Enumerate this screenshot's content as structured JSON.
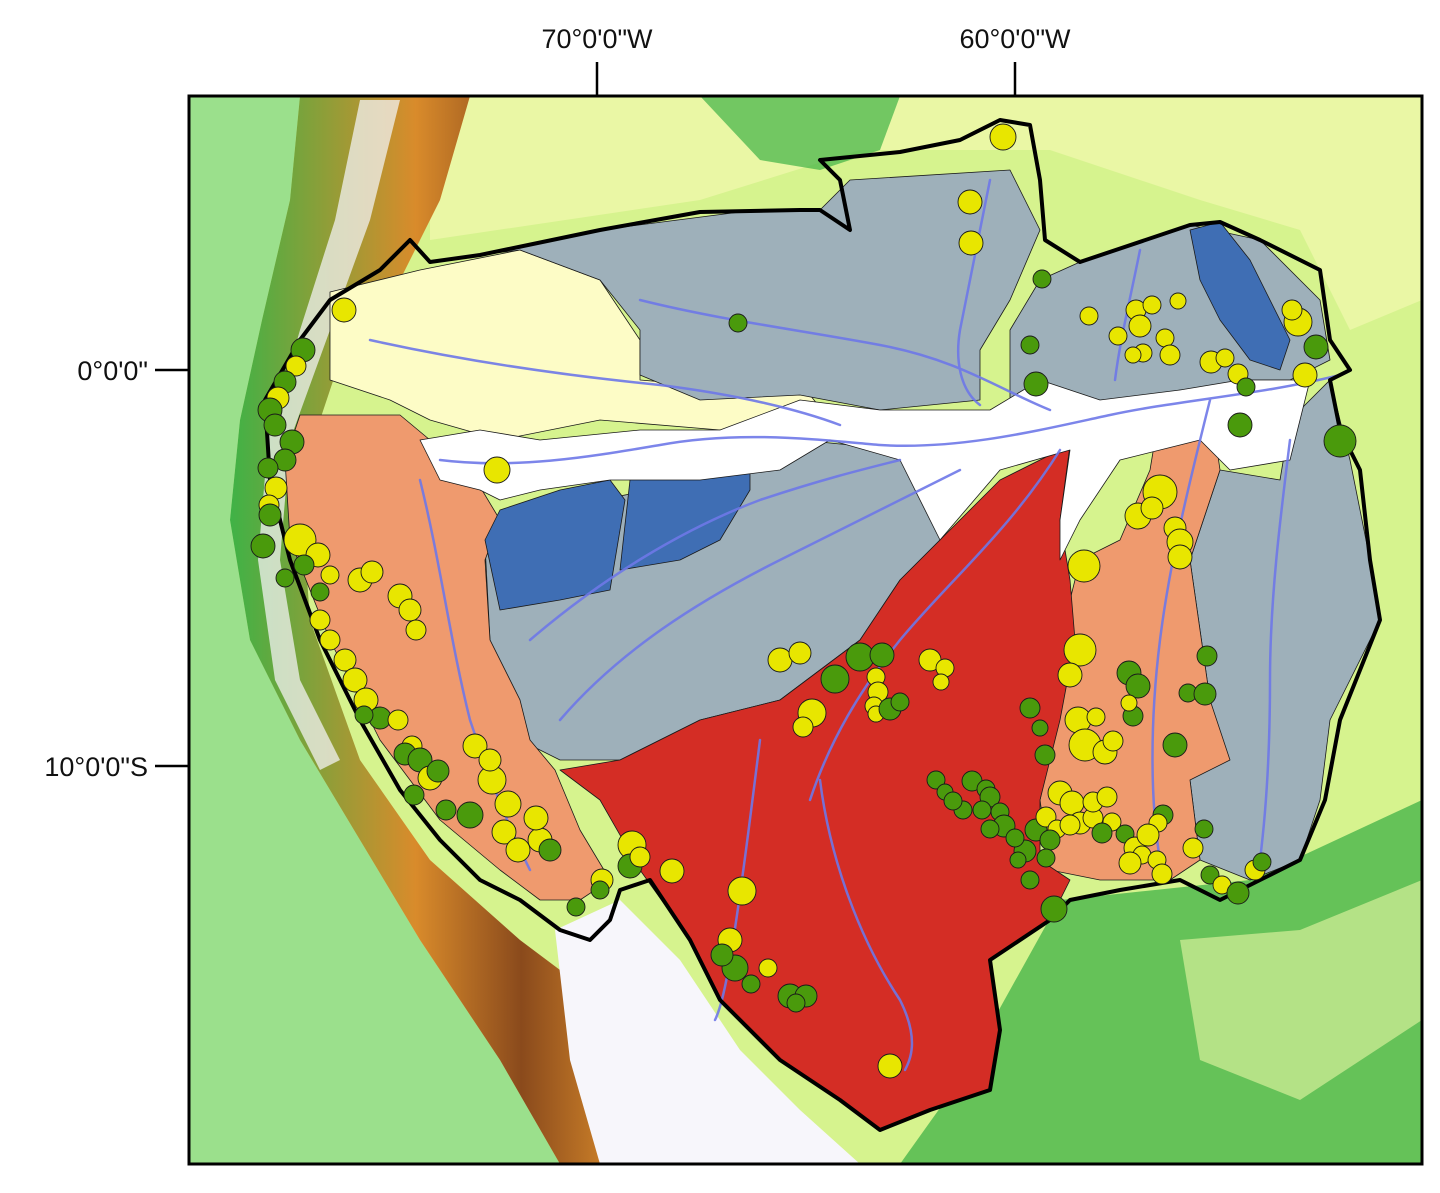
{
  "colors": {
    "lowland": "#d6f38e",
    "lowland_light": "#eaf7a5",
    "coast_green": "#9be08c",
    "forest_green": "#3fb246",
    "highland_orange": "#d98b2b",
    "highland_brown": "#8a4a1c",
    "snow": "#f2f2f2",
    "altiplano": "#f7f6fb",
    "basin_border": "#000000",
    "grey_basin": "#9eb0ba",
    "blue_basin": "#3f6eb4",
    "salmon_basin": "#ef9a6e",
    "red_basin": "#d42d25",
    "pale_yellow_basin": "#fdfcc6",
    "white_basin": "#ffffff",
    "river": "#6e78e8",
    "yellow_site": "#e8e600",
    "green_site": "#4a9a0c"
  },
  "graticule": {
    "longitudes": [
      {
        "label": "70°0'0\"W"
      },
      {
        "label": "60°0'0\"W"
      }
    ],
    "latitudes": [
      {
        "label": "0°0'0\""
      },
      {
        "label": "10°0'0\"S"
      }
    ]
  },
  "regions": [
    {
      "name": "northwest-pale-basin",
      "fill": "pale_yellow_basin"
    },
    {
      "name": "north-grey-basin",
      "fill": "grey_basin"
    },
    {
      "name": "northeast-grey-basin",
      "fill": "grey_basin"
    },
    {
      "name": "east-grey-basin",
      "fill": "grey_basin"
    },
    {
      "name": "central-grey-basin",
      "fill": "grey_basin"
    },
    {
      "name": "western-salmon-basin",
      "fill": "salmon_basin"
    },
    {
      "name": "southeast-salmon-basin",
      "fill": "salmon_basin"
    },
    {
      "name": "southern-red-basin",
      "fill": "red_basin"
    },
    {
      "name": "blue-basins",
      "fill": "blue_basin"
    },
    {
      "name": "mainstem-white-floodplain",
      "fill": "white_basin"
    }
  ],
  "sites": {
    "yellow_count": 150,
    "green_count": 110
  }
}
